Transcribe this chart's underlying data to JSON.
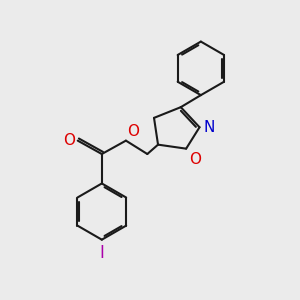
{
  "bg_color": "#ebebeb",
  "bond_color": "#1a1a1a",
  "N_color": "#0000cc",
  "O_color": "#dd0000",
  "I_color": "#aa00aa",
  "lw": 1.5,
  "dbo": 0.07,
  "xlim": [
    0,
    10
  ],
  "ylim": [
    0,
    11
  ]
}
